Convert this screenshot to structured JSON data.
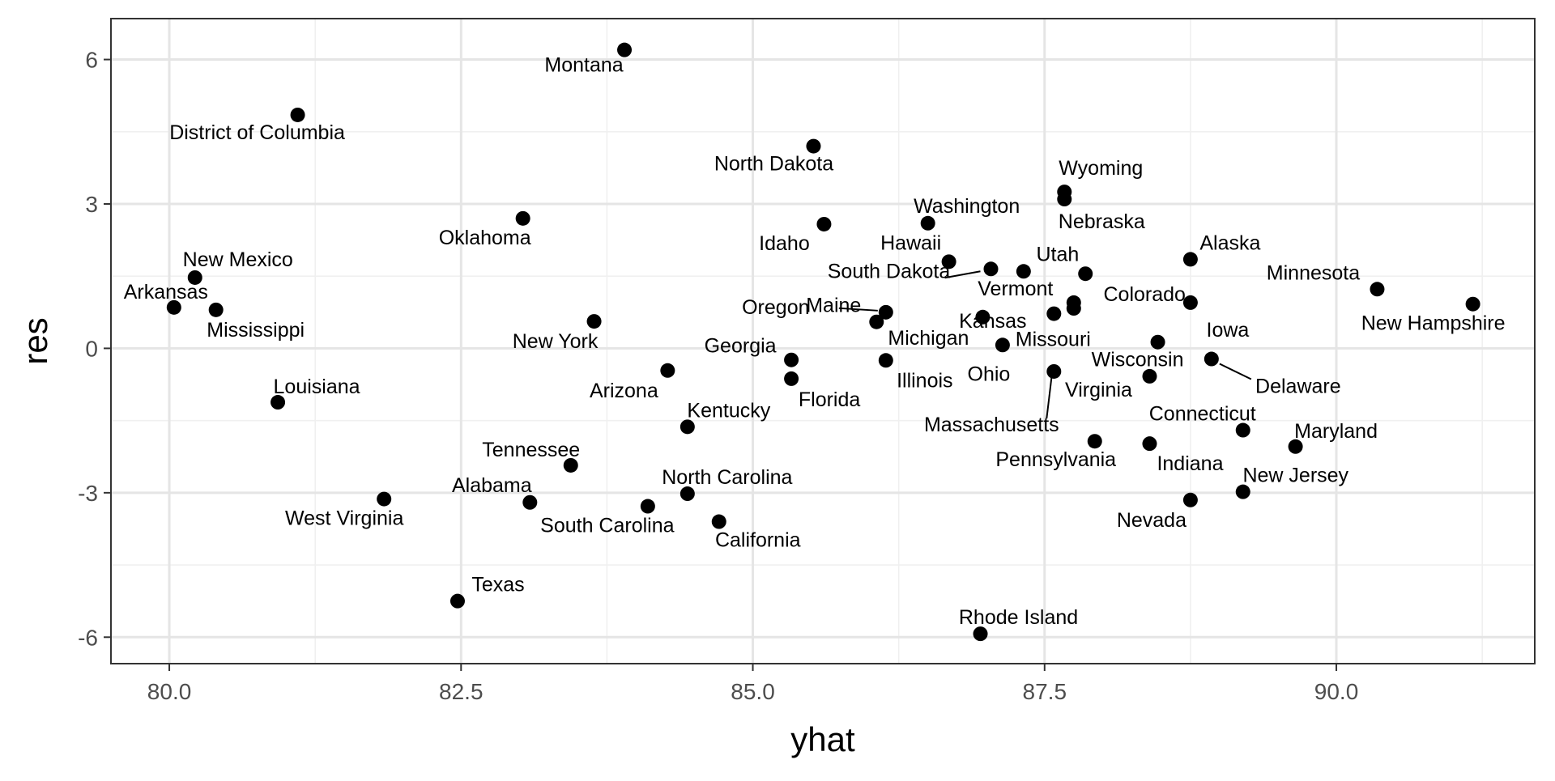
{
  "chart_data": {
    "type": "scatter",
    "title": "",
    "xlabel": "yhat",
    "ylabel": "res",
    "xlim": [
      79.5,
      91.7
    ],
    "ylim": [
      -6.55,
      6.85
    ],
    "x_ticks": [
      80.0,
      82.5,
      85.0,
      87.5,
      90.0
    ],
    "x_tick_labels": [
      "80.0",
      "82.5",
      "85.0",
      "87.5",
      "90.0"
    ],
    "y_ticks": [
      -6,
      -3,
      0,
      3,
      6
    ],
    "y_tick_labels": [
      "-6",
      "-3",
      "0",
      "3",
      "6"
    ],
    "grid": true,
    "legend": "none",
    "points": [
      {
        "label": "Montana",
        "x": 83.9,
        "y": 6.2
      },
      {
        "label": "District of Columbia",
        "x": 81.1,
        "y": 4.85
      },
      {
        "label": "North Dakota",
        "x": 85.52,
        "y": 4.2
      },
      {
        "label": "Wyoming",
        "x": 87.67,
        "y": 3.25
      },
      {
        "label": "Nebraska",
        "x": 87.67,
        "y": 3.1
      },
      {
        "label": "Oklahoma",
        "x": 83.03,
        "y": 2.7
      },
      {
        "label": "Washington",
        "x": 86.5,
        "y": 2.6
      },
      {
        "label": "Idaho",
        "x": 85.61,
        "y": 2.58
      },
      {
        "label": "Alaska",
        "x": 88.75,
        "y": 1.85
      },
      {
        "label": "Hawaii",
        "x": 86.68,
        "y": 1.8
      },
      {
        "label": "South Dakota",
        "x": 87.04,
        "y": 1.65
      },
      {
        "label": "Utah",
        "x": 87.32,
        "y": 1.6
      },
      {
        "label": "Colorado",
        "x": 87.85,
        "y": 1.55
      },
      {
        "label": "New Mexico",
        "x": 80.22,
        "y": 1.47
      },
      {
        "label": "Minnesota",
        "x": 90.35,
        "y": 1.23
      },
      {
        "label": "Iowa",
        "x": 88.75,
        "y": 0.95
      },
      {
        "label": "Vermont",
        "x": 87.75,
        "y": 0.95
      },
      {
        "label": "New Hampshire",
        "x": 91.17,
        "y": 0.92
      },
      {
        "label": "Arkansas",
        "x": 80.04,
        "y": 0.85
      },
      {
        "label": "Kansas",
        "x": 87.75,
        "y": 0.83
      },
      {
        "label": "Mississippi",
        "x": 80.4,
        "y": 0.8
      },
      {
        "label": "Oregon",
        "x": 86.14,
        "y": 0.75
      },
      {
        "label": "Missouri",
        "x": 87.58,
        "y": 0.72
      },
      {
        "label": "Michigan",
        "x": 86.97,
        "y": 0.65
      },
      {
        "label": "New York",
        "x": 83.64,
        "y": 0.56
      },
      {
        "label": "Maine",
        "x": 86.06,
        "y": 0.55
      },
      {
        "label": "Wisconsin",
        "x": 88.47,
        "y": 0.13
      },
      {
        "label": "Ohio",
        "x": 87.14,
        "y": 0.07
      },
      {
        "label": "Delaware",
        "x": 88.93,
        "y": -0.22
      },
      {
        "label": "Georgia",
        "x": 85.33,
        "y": -0.24
      },
      {
        "label": "Illinois",
        "x": 86.14,
        "y": -0.25
      },
      {
        "label": "Arizona",
        "x": 84.27,
        "y": -0.46
      },
      {
        "label": "Massachusetts",
        "x": 87.58,
        "y": -0.48
      },
      {
        "label": "Virginia",
        "x": 88.4,
        "y": -0.58
      },
      {
        "label": "Florida",
        "x": 85.33,
        "y": -0.63
      },
      {
        "label": "Louisiana",
        "x": 80.93,
        "y": -1.12
      },
      {
        "label": "Kentucky",
        "x": 84.44,
        "y": -1.63
      },
      {
        "label": "Connecticut",
        "x": 89.2,
        "y": -1.7
      },
      {
        "label": "Pennsylvania",
        "x": 87.93,
        "y": -1.93
      },
      {
        "label": "Indiana",
        "x": 88.4,
        "y": -1.98
      },
      {
        "label": "Maryland",
        "x": 89.65,
        "y": -2.04
      },
      {
        "label": "Tennessee",
        "x": 83.44,
        "y": -2.43
      },
      {
        "label": "New Jersey",
        "x": 89.2,
        "y": -2.98
      },
      {
        "label": "North Carolina",
        "x": 84.44,
        "y": -3.02
      },
      {
        "label": "West Virginia",
        "x": 81.84,
        "y": -3.13
      },
      {
        "label": "Nevada",
        "x": 88.75,
        "y": -3.15
      },
      {
        "label": "Alabama",
        "x": 83.09,
        "y": -3.2
      },
      {
        "label": "South Carolina",
        "x": 84.1,
        "y": -3.28
      },
      {
        "label": "California",
        "x": 84.71,
        "y": -3.6
      },
      {
        "label": "Texas",
        "x": 82.47,
        "y": -5.25
      },
      {
        "label": "Rhode Island",
        "x": 86.95,
        "y": -5.93
      }
    ]
  }
}
